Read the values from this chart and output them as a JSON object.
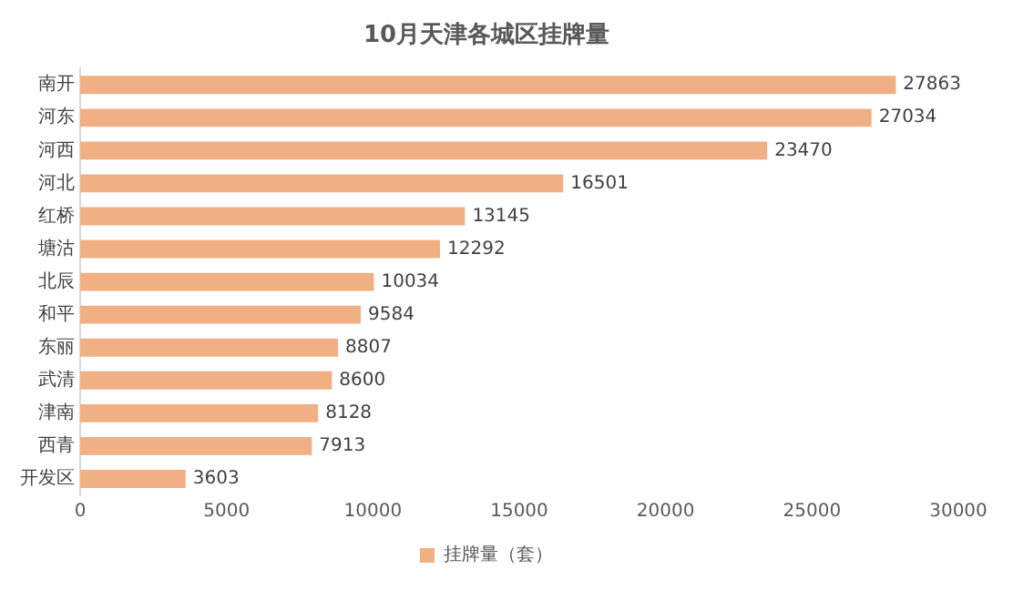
{
  "chart_data": {
    "type": "bar",
    "orientation": "horizontal",
    "title": "10月天津各城区挂牌量",
    "categories": [
      "南开",
      "河东",
      "河西",
      "河北",
      "红桥",
      "塘沽",
      "北辰",
      "和平",
      "东丽",
      "武清",
      "津南",
      "西青",
      "开发区"
    ],
    "series": [
      {
        "name": "挂牌量（套）",
        "color": "#f0b084",
        "values": [
          27863,
          27034,
          23470,
          16501,
          13145,
          12292,
          10034,
          9584,
          8807,
          8600,
          8128,
          7913,
          3603
        ]
      }
    ],
    "xlim": [
      0,
      30000
    ],
    "xticks": [
      0,
      5000,
      10000,
      15000,
      20000,
      25000,
      30000
    ],
    "grid": false,
    "legend": "bottom",
    "data_labels": true
  }
}
